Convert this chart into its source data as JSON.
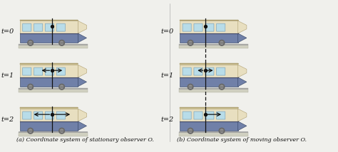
{
  "fig_width": 4.74,
  "fig_height": 2.14,
  "dpi": 100,
  "bg_color": "#f0f0ec",
  "panel_a_label": "(a) Coordinate system of stationary observer O.",
  "panel_b_label": "(b) Coordinate system of moving observer O.",
  "times": [
    "t=0",
    "t=1",
    "t=2"
  ],
  "train_body_top": "#e8dfc0",
  "train_body_bot": "#c8b888",
  "train_stripe_color": "#7080a8",
  "train_stripe_dark": "#404868",
  "train_roof_line": "#b0a880",
  "window_color": "#b8dce8",
  "window_edge": "#80a8c0",
  "wheel_color": "#686868",
  "wheel_inner": "#909090",
  "rail_color": "#a0a0a0",
  "ground_color": "#d0d0c0",
  "ground_edge": "#b0b0a0",
  "arrow_color": "#111111",
  "line_color": "#111111",
  "text_color": "#111111",
  "label_fontsize": 5.8,
  "time_fontsize": 7.0,
  "nose_color": "#c8b478"
}
